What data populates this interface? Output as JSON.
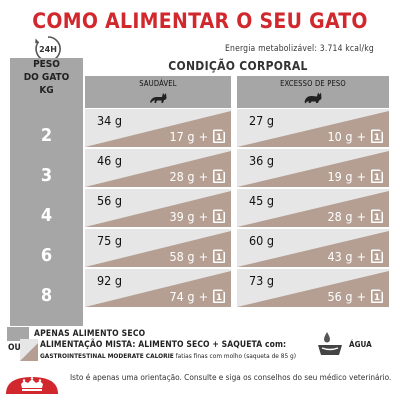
{
  "title": "COMO ALIMENTAR O SEU GATO",
  "badge_label": "24H",
  "energy": "Energia metabolizável: 3.714 kcal/kg",
  "table": {
    "peso_header_line1": "PESO",
    "peso_header_line2": "DO GATO",
    "peso_header_line3": "KG",
    "condicao_header": "CONDIÇÃO CORPORAL",
    "col1_header": "SAUDÁVEL",
    "col2_header": "EXCESSO DE PESO",
    "rows": [
      {
        "kg": "2",
        "saud_dry": "34 g",
        "saud_mix": "17 g",
        "exc_dry": "27 g",
        "exc_mix": "10 g"
      },
      {
        "kg": "3",
        "saud_dry": "46 g",
        "saud_mix": "28 g",
        "exc_dry": "36 g",
        "exc_mix": "19 g"
      },
      {
        "kg": "4",
        "saud_dry": "56 g",
        "saud_mix": "39 g",
        "exc_dry": "45 g",
        "exc_mix": "28 g"
      },
      {
        "kg": "6",
        "saud_dry": "75 g",
        "saud_mix": "58 g",
        "exc_dry": "60 g",
        "exc_mix": "43 g"
      },
      {
        "kg": "8",
        "saud_dry": "92 g",
        "saud_mix": "74 g",
        "exc_dry": "73 g",
        "exc_mix": "56 g"
      }
    ],
    "plus_sign": "+",
    "pouch_count": "1"
  },
  "legend": {
    "dry_only": "APENAS ALIMENTO SECO",
    "ou": "OU",
    "mixed": "ALIMENTAÇÃO MISTA: ALIMENTO SECO + SAQUETA com:",
    "mixed_detail_bold": "GASTROINTESTINAL MODERATE CALORIE",
    "mixed_detail_rest": " fatias finas com molho (saqueta de 85 g)",
    "water": "ÁGUA"
  },
  "footer": "Isto é apenas uma orientação. Consulte e siga os conselhos do seu médico veterinário.",
  "colors": {
    "brand_red": "#d1282e",
    "grey_dark": "#a6a6a6",
    "grey_light": "#e6e6e6",
    "mixed_brown": "#b59f92"
  },
  "icons": [
    "clock-icon",
    "cat-healthy-icon",
    "cat-overweight-icon",
    "pouch-icon",
    "water-bowl-icon",
    "royal-canin-crown-icon"
  ]
}
